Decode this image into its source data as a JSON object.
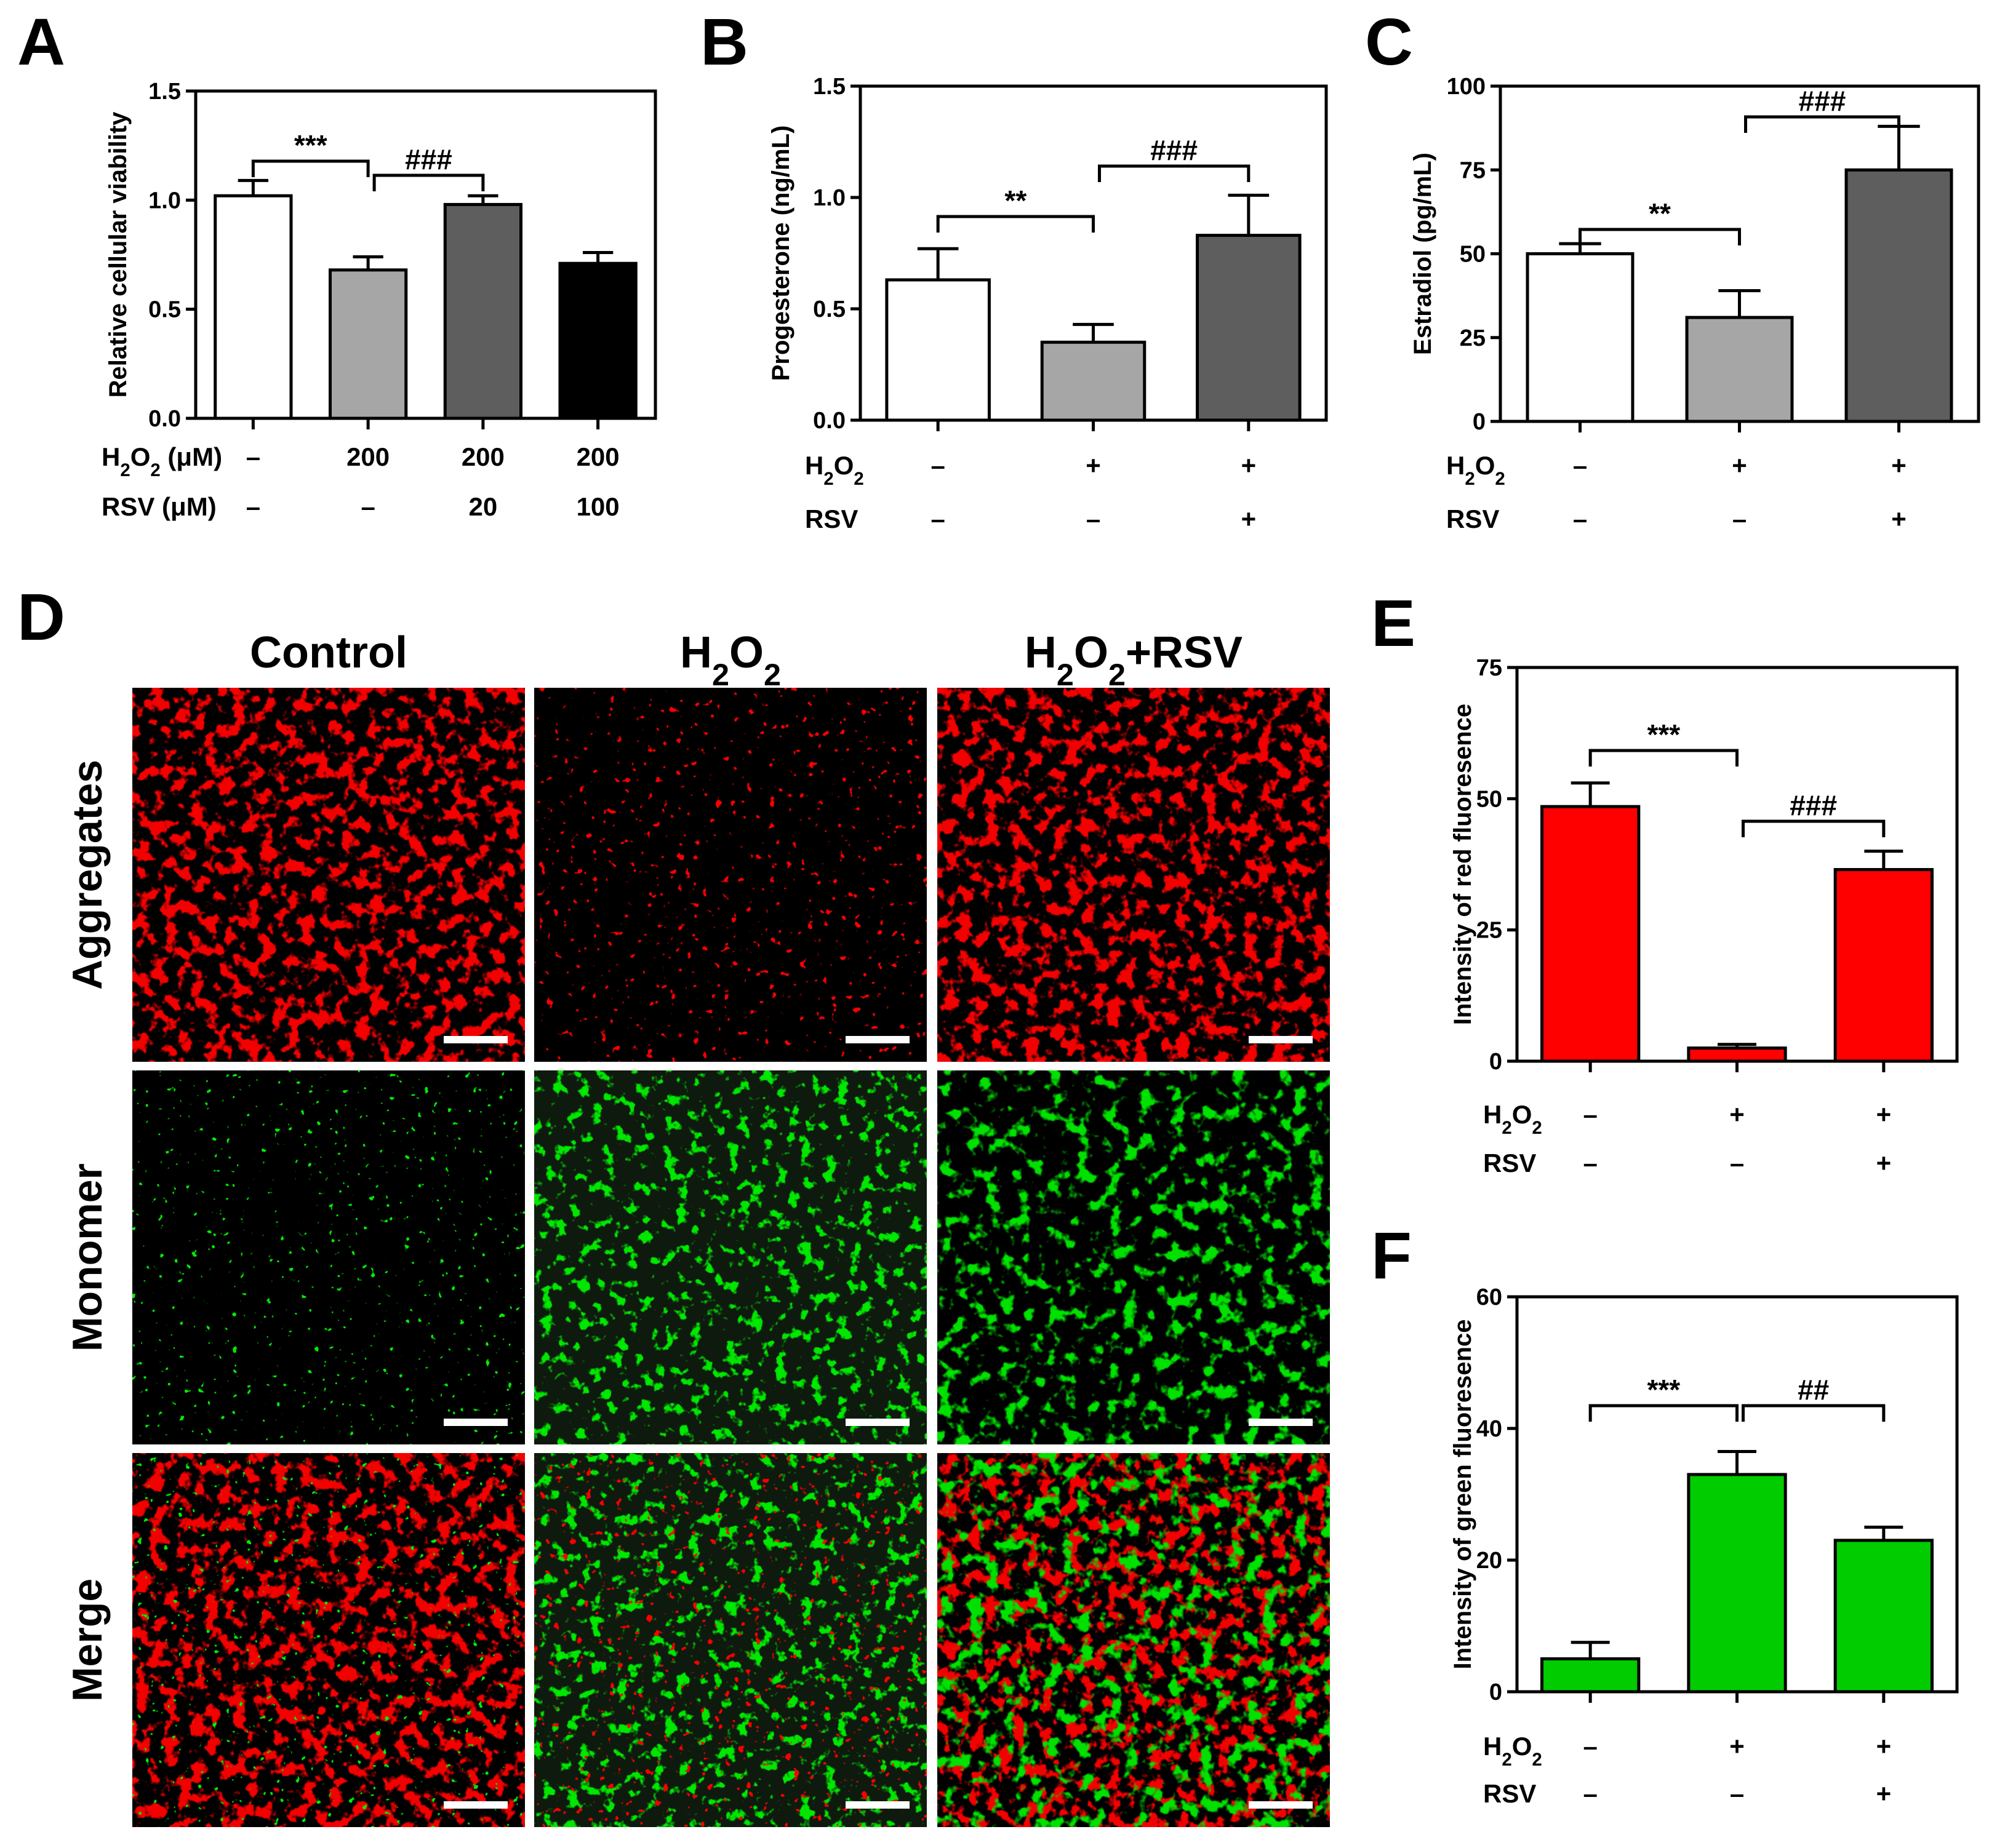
{
  "panels": [
    {
      "letter": "A",
      "chart_data": {
        "type": "bar",
        "ylabel": "Relative cellular viability",
        "ylim": [
          0,
          1.5
        ],
        "yticks": [
          "0.0",
          "0.5",
          "1.0",
          "1.5"
        ],
        "ytick_values": [
          0,
          0.5,
          1.0,
          1.5
        ],
        "bar_colors": [
          "#ffffff",
          "#a6a6a6",
          "#5e5e5e",
          "#000000"
        ],
        "values": [
          1.02,
          0.68,
          0.98,
          0.71
        ],
        "errors": [
          0.07,
          0.06,
          0.04,
          0.05
        ],
        "conditions": [
          {
            "label": "H2O2 (μM)",
            "values": [
              "–",
              "200",
              "200",
              "200"
            ]
          },
          {
            "label": "RSV (μM)",
            "values": [
              "–",
              "–",
              "20",
              "100"
            ]
          }
        ],
        "significance": [
          {
            "from": 0,
            "to": 1,
            "label": "***"
          },
          {
            "from": 1,
            "to": 2,
            "label": "###"
          }
        ]
      }
    },
    {
      "letter": "B",
      "chart_data": {
        "type": "bar",
        "ylabel": "Progesterone (ng/mL)",
        "ylim": [
          0,
          1.5
        ],
        "yticks": [
          "0.0",
          "0.5",
          "1.0",
          "1.5"
        ],
        "ytick_values": [
          0,
          0.5,
          1.0,
          1.5
        ],
        "bar_colors": [
          "#ffffff",
          "#a6a6a6",
          "#5e5e5e"
        ],
        "values": [
          0.63,
          0.35,
          0.83
        ],
        "errors": [
          0.14,
          0.08,
          0.18
        ],
        "conditions": [
          {
            "label": "H2O2",
            "values": [
              "–",
              "+",
              "+"
            ]
          },
          {
            "label": "RSV",
            "values": [
              "–",
              "–",
              "+"
            ]
          }
        ],
        "significance": [
          {
            "from": 0,
            "to": 1,
            "label": "**"
          },
          {
            "from": 1,
            "to": 2,
            "label": "###"
          }
        ]
      }
    },
    {
      "letter": "C",
      "chart_data": {
        "type": "bar",
        "ylabel": "Estradiol (pg/mL)",
        "ylim": [
          0,
          100
        ],
        "yticks": [
          "0",
          "25",
          "50",
          "75",
          "100"
        ],
        "ytick_values": [
          0,
          25,
          50,
          75,
          100
        ],
        "bar_colors": [
          "#ffffff",
          "#a6a6a6",
          "#5e5e5e"
        ],
        "values": [
          50,
          31,
          75
        ],
        "errors": [
          3,
          8,
          13
        ],
        "conditions": [
          {
            "label": "H2O2",
            "values": [
              "–",
              "+",
              "+"
            ]
          },
          {
            "label": "RSV",
            "values": [
              "–",
              "–",
              "+"
            ]
          }
        ],
        "significance": [
          {
            "from": 0,
            "to": 1,
            "label": "**"
          },
          {
            "from": 1,
            "to": 2,
            "label": "###"
          }
        ]
      }
    },
    {
      "letter": "E",
      "chart_data": {
        "type": "bar",
        "ylabel": "Intensity of red fluoresence",
        "ylim": [
          0,
          75
        ],
        "yticks": [
          "0",
          "25",
          "50",
          "75"
        ],
        "ytick_values": [
          0,
          25,
          50,
          75
        ],
        "bar_colors": [
          "#ff0000",
          "#ff0000",
          "#ff0000"
        ],
        "values": [
          48.5,
          2.5,
          36.5
        ],
        "errors": [
          4.5,
          0.7,
          3.5
        ],
        "conditions": [
          {
            "label": "H2O2",
            "values": [
              "–",
              "+",
              "+"
            ]
          },
          {
            "label": "RSV",
            "values": [
              "–",
              "–",
              "+"
            ]
          }
        ],
        "significance": [
          {
            "from": 0,
            "to": 1,
            "label": "***"
          },
          {
            "from": 1,
            "to": 2,
            "label": "###"
          }
        ]
      }
    },
    {
      "letter": "F",
      "chart_data": {
        "type": "bar",
        "ylabel": "Intensity of green fluoresence",
        "ylim": [
          0,
          60
        ],
        "yticks": [
          "0",
          "20",
          "40",
          "60"
        ],
        "ytick_values": [
          0,
          20,
          40,
          60
        ],
        "bar_colors": [
          "#00cc00",
          "#00cc00",
          "#00cc00"
        ],
        "values": [
          5,
          33,
          23
        ],
        "errors": [
          2.5,
          3.5,
          2
        ],
        "conditions": [
          {
            "label": "H2O2",
            "values": [
              "–",
              "+",
              "+"
            ]
          },
          {
            "label": "RSV",
            "values": [
              "–",
              "–",
              "+"
            ]
          }
        ],
        "significance": [
          {
            "from": 0,
            "to": 1,
            "label": "***"
          },
          {
            "from": 1,
            "to": 2,
            "label": "##"
          }
        ]
      }
    }
  ],
  "microscopy": {
    "letter": "D",
    "columns": [
      "Control",
      "H2O2",
      "H2O2+RSV"
    ],
    "rows": [
      "Aggregates",
      "Monomer",
      "Merge"
    ]
  }
}
